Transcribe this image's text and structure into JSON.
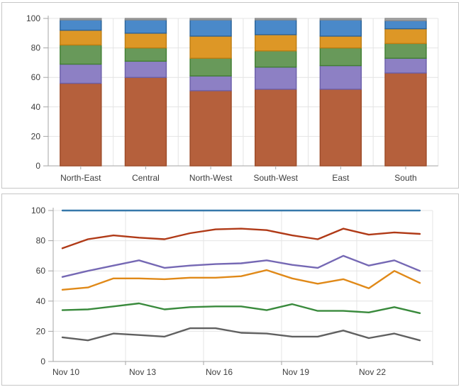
{
  "chart_data": [
    {
      "type": "bar",
      "subtype": "stacked-100",
      "title": "",
      "xlabel": "",
      "ylabel": "",
      "ylim": [
        0,
        100
      ],
      "y_ticks": [
        0,
        20,
        40,
        60,
        80,
        100
      ],
      "grid": true,
      "legend": "none",
      "categories": [
        "North-East",
        "Central",
        "North-West",
        "South-West",
        "East",
        "South"
      ],
      "series": [
        {
          "name": "segment-rust",
          "fill": "#b5603c",
          "stroke": "#9c4b28",
          "values": [
            56,
            60,
            51,
            52,
            52,
            63
          ]
        },
        {
          "name": "segment-purple",
          "fill": "#8d80c4",
          "stroke": "#6b5fa9",
          "values": [
            13,
            11,
            10,
            15,
            16,
            10
          ]
        },
        {
          "name": "segment-green",
          "fill": "#68995a",
          "stroke": "#417f33",
          "values": [
            13,
            9,
            12,
            11,
            12,
            10
          ]
        },
        {
          "name": "segment-orange",
          "fill": "#dd9726",
          "stroke": "#bd7d12",
          "values": [
            10,
            10,
            15,
            11,
            8,
            10
          ]
        },
        {
          "name": "segment-blue",
          "fill": "#4a89c9",
          "stroke": "#2b6399",
          "values": [
            7,
            9,
            11,
            10,
            11,
            5.5
          ]
        },
        {
          "name": "segment-gray",
          "fill": "#a6a6a6",
          "stroke": "#8c8c8c",
          "values": [
            1,
            1,
            1,
            1,
            1,
            1.5
          ]
        }
      ]
    },
    {
      "type": "line",
      "title": "",
      "xlabel": "",
      "ylabel": "",
      "ylim": [
        0,
        100
      ],
      "y_ticks": [
        0,
        20,
        40,
        60,
        80,
        100
      ],
      "grid": true,
      "legend": "none",
      "x_dates": [
        "Nov 10",
        "Nov 11",
        "Nov 12",
        "Nov 13",
        "Nov 14",
        "Nov 15",
        "Nov 16",
        "Nov 17",
        "Nov 18",
        "Nov 19",
        "Nov 20",
        "Nov 21",
        "Nov 22",
        "Nov 23",
        "Nov 24"
      ],
      "x_axis_labels": [
        "Nov 10",
        "Nov 13",
        "Nov 16",
        "Nov 19",
        "Nov 22"
      ],
      "x_axis_label_indices": [
        0,
        3,
        6,
        9,
        12
      ],
      "series": [
        {
          "name": "line-blue",
          "color": "#3678aa",
          "values": [
            100,
            100,
            100,
            100,
            100,
            100,
            100,
            100,
            100,
            100,
            100,
            100,
            100,
            100,
            100
          ]
        },
        {
          "name": "line-red",
          "color": "#b03a17",
          "values": [
            75,
            81,
            83.5,
            82,
            81,
            85,
            87.5,
            88,
            87,
            83.5,
            81,
            88,
            84,
            85.5,
            84.5
          ]
        },
        {
          "name": "line-purple",
          "color": "#7568b4",
          "values": [
            56,
            60,
            63.5,
            67,
            62,
            63.5,
            64.5,
            65,
            67,
            64,
            62,
            70,
            63.5,
            67,
            60
          ]
        },
        {
          "name": "line-orange",
          "color": "#e08918",
          "values": [
            47.5,
            49,
            55,
            55,
            54.5,
            55.5,
            55.5,
            56.5,
            60.5,
            55,
            51.5,
            54.5,
            48.5,
            60,
            52
          ]
        },
        {
          "name": "line-green",
          "color": "#398a3c",
          "values": [
            34,
            34.5,
            36.5,
            38.5,
            34.5,
            36,
            36.5,
            36.5,
            34,
            38,
            33.5,
            33.5,
            32.5,
            36,
            32
          ]
        },
        {
          "name": "line-gray",
          "color": "#606060",
          "values": [
            16,
            14,
            18.5,
            17.5,
            16.5,
            22,
            22,
            19,
            18.5,
            16.5,
            16.5,
            20.5,
            15.5,
            18.5,
            14
          ]
        }
      ]
    }
  ],
  "style": {
    "panel_border": "#c6c6c6",
    "gridline": "#e4e4e4",
    "axis_line": "#a6a6a6",
    "tick_line": "#a6a6a6",
    "label_text": "#3d3d3d"
  }
}
